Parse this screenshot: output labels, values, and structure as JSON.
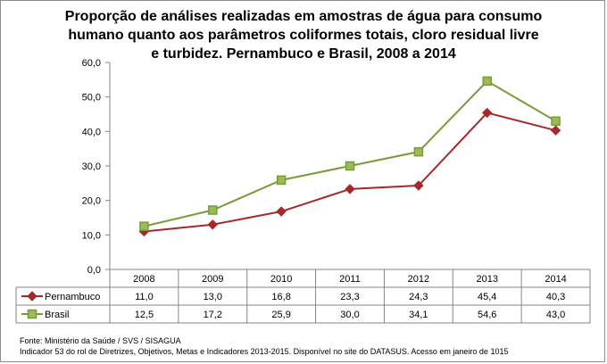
{
  "title_lines": [
    "Proporção de análises realizadas em amostras de água para consumo",
    "humano quanto aos parâmetros coliformes totais, cloro residual livre",
    "e turbidez. Pernambuco e Brasil, 2008 a 2014"
  ],
  "chart_data": {
    "type": "line",
    "title": "Proporção de análises realizadas em amostras de água para consumo humano quanto aos parâmetros coliformes totais, cloro residual livre e turbidez. Pernambuco e Brasil, 2008 a 2014",
    "categories": [
      "2008",
      "2009",
      "2010",
      "2011",
      "2012",
      "2013",
      "2014"
    ],
    "ylim": [
      0,
      60
    ],
    "yticks": [
      "0,0",
      "10,0",
      "20,0",
      "30,0",
      "40,0",
      "50,0",
      "60,0"
    ],
    "series": [
      {
        "name": "Pernambuco",
        "values": [
          11.0,
          13.0,
          16.8,
          23.3,
          24.3,
          45.4,
          40.3
        ],
        "labels": [
          "11,0",
          "13,0",
          "16,8",
          "23,3",
          "24,3",
          "45,4",
          "40,3"
        ],
        "color": "#a5282b",
        "marker": "diamond"
      },
      {
        "name": "Brasil",
        "values": [
          12.5,
          17.2,
          25.9,
          30.0,
          34.1,
          54.6,
          43.0
        ],
        "labels": [
          "12,5",
          "17,2",
          "25,9",
          "30,0",
          "34,1",
          "54,6",
          "43,0"
        ],
        "color": "#7a9a3a",
        "marker_fill": "#9bbb59",
        "marker": "square"
      }
    ],
    "legend": "data-table",
    "grid": false
  },
  "footer": {
    "source": "Fonte: Ministério da Saúde / SVS / SISAGUA",
    "note": "Indicador 53 do rol de Diretrizes, Objetivos, Metas e Indicadores 2013-2015. Disponível no site do DATASUS. Acesso em janeiro de 1015"
  }
}
